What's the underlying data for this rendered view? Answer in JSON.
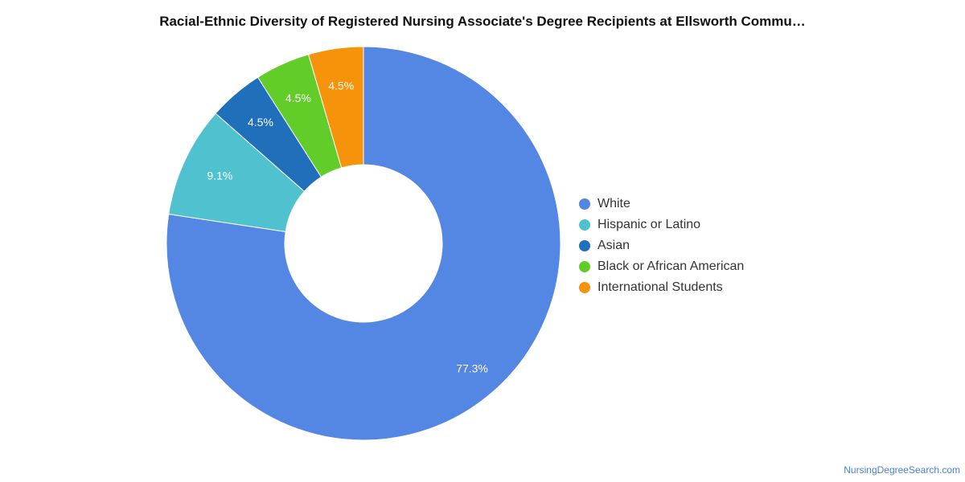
{
  "chart_data": {
    "type": "pie",
    "title": "Racial-Ethnic Diversity of Registered Nursing Associate's Degree Recipients at Ellsworth Commu…",
    "donut": true,
    "legend_position": "right",
    "slices": [
      {
        "name": "White",
        "value": 77.3,
        "label": "77.3%",
        "color": "#5486e3"
      },
      {
        "name": "Hispanic or Latino",
        "value": 9.1,
        "label": "9.1%",
        "color": "#50c1cf"
      },
      {
        "name": "Asian",
        "value": 4.5,
        "label": "4.5%",
        "color": "#1f6fba"
      },
      {
        "name": "Black or African American",
        "value": 4.5,
        "label": "4.5%",
        "color": "#62cc29"
      },
      {
        "name": "International Students",
        "value": 4.5,
        "label": "4.5%",
        "color": "#f7930a"
      }
    ]
  },
  "footer": {
    "source": "NursingDegreeSearch.com"
  }
}
